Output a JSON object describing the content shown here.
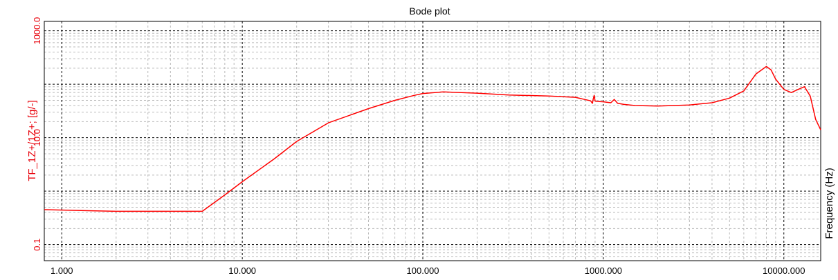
{
  "chart_data": {
    "type": "line",
    "title": "Bode plot",
    "xlabel": "Frequency (Hz)",
    "ylabel": "TF_1Z+/1Z+; [g/-]",
    "x_scale": "log",
    "y_scale": "log",
    "xlim": [
      0.8,
      16000
    ],
    "ylim": [
      0.05,
      1500
    ],
    "grid": true,
    "x_ticks": [
      {
        "value": 1,
        "label": "1.000"
      },
      {
        "value": 10,
        "label": "10.000"
      },
      {
        "value": 100,
        "label": "100.000"
      },
      {
        "value": 1000,
        "label": "1000.000"
      },
      {
        "value": 10000,
        "label": "10000.000"
      }
    ],
    "y_ticks": [
      {
        "value": 0.1,
        "label": "0.1"
      },
      {
        "value": 10,
        "label": "10.0"
      },
      {
        "value": 1000,
        "label": "1000.0"
      }
    ],
    "y_major_lines": [
      0.1,
      1,
      10,
      100,
      1000
    ],
    "series": [
      {
        "color": "#ff0000",
        "x": [
          0.8,
          2,
          6,
          8,
          10,
          15,
          20,
          30,
          50,
          70,
          90,
          100,
          130,
          200,
          300,
          500,
          700,
          850,
          870,
          880,
          890,
          900,
          910,
          1000,
          1100,
          1150,
          1200,
          1300,
          1500,
          2000,
          3000,
          4000,
          5000,
          6000,
          7000,
          8000,
          8500,
          9000,
          10000,
          11000,
          12000,
          13000,
          14000,
          15000,
          16000
        ],
        "values": [
          0.45,
          0.42,
          0.42,
          0.85,
          1.5,
          4,
          8.5,
          19,
          35,
          50,
          62,
          67,
          72,
          68,
          63,
          60,
          57,
          49,
          44,
          54,
          62,
          49,
          48,
          47,
          45,
          52,
          44,
          42,
          40,
          39,
          41,
          45,
          55,
          75,
          155,
          215,
          185,
          125,
          80,
          70,
          80,
          90,
          60,
          22,
          14
        ]
      }
    ]
  }
}
